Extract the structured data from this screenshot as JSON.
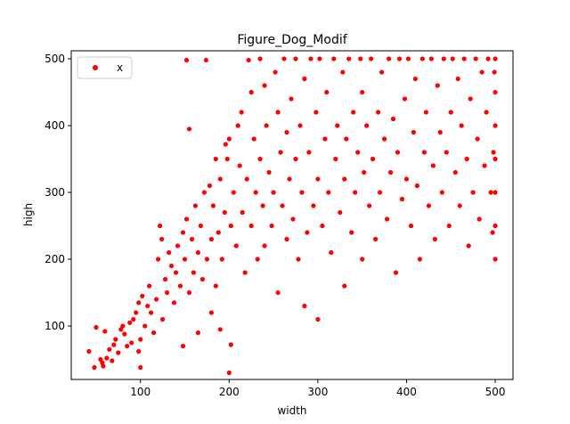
{
  "chart_data": {
    "type": "scatter",
    "title": "Figure_Dog_Modif",
    "xlabel": "width",
    "ylabel": "high",
    "xlim": [
      22,
      520
    ],
    "ylim": [
      20,
      512
    ],
    "xticks": [
      100,
      200,
      300,
      400,
      500
    ],
    "yticks": [
      100,
      200,
      300,
      400,
      500
    ],
    "grid": false,
    "legend": {
      "position": "top-left",
      "entries": [
        "x"
      ]
    },
    "marker_color": "#ff0000",
    "series": [
      {
        "name": "x",
        "points": [
          [
            42,
            62
          ],
          [
            48,
            38
          ],
          [
            50,
            98
          ],
          [
            55,
            50
          ],
          [
            57,
            45
          ],
          [
            58,
            40
          ],
          [
            60,
            92
          ],
          [
            62,
            52
          ],
          [
            65,
            65
          ],
          [
            68,
            48
          ],
          [
            70,
            72
          ],
          [
            72,
            80
          ],
          [
            75,
            60
          ],
          [
            78,
            95
          ],
          [
            80,
            100
          ],
          [
            82,
            88
          ],
          [
            85,
            70
          ],
          [
            88,
            105
          ],
          [
            90,
            75
          ],
          [
            92,
            110
          ],
          [
            95,
            120
          ],
          [
            98,
            135
          ],
          [
            98,
            62
          ],
          [
            100,
            80
          ],
          [
            100,
            38
          ],
          [
            102,
            145
          ],
          [
            105,
            100
          ],
          [
            108,
            130
          ],
          [
            110,
            160
          ],
          [
            112,
            120
          ],
          [
            115,
            90
          ],
          [
            118,
            140
          ],
          [
            120,
            200
          ],
          [
            122,
            250
          ],
          [
            124,
            230
          ],
          [
            125,
            110
          ],
          [
            128,
            170
          ],
          [
            130,
            150
          ],
          [
            132,
            210
          ],
          [
            135,
            190
          ],
          [
            138,
            135
          ],
          [
            140,
            180
          ],
          [
            142,
            220
          ],
          [
            145,
            160
          ],
          [
            148,
            240
          ],
          [
            148,
            70
          ],
          [
            150,
            200
          ],
          [
            152,
            260
          ],
          [
            152,
            498
          ],
          [
            155,
            150
          ],
          [
            155,
            395
          ],
          [
            158,
            230
          ],
          [
            160,
            180
          ],
          [
            162,
            280
          ],
          [
            165,
            210
          ],
          [
            165,
            90
          ],
          [
            168,
            250
          ],
          [
            170,
            170
          ],
          [
            172,
            300
          ],
          [
            174,
            498
          ],
          [
            175,
            200
          ],
          [
            178,
            310
          ],
          [
            180,
            230
          ],
          [
            180,
            120
          ],
          [
            182,
            280
          ],
          [
            185,
            160
          ],
          [
            185,
            350
          ],
          [
            188,
            240
          ],
          [
            190,
            320
          ],
          [
            190,
            95
          ],
          [
            192,
            200
          ],
          [
            195,
            270
          ],
          [
            196,
            372
          ],
          [
            198,
            350
          ],
          [
            200,
            380
          ],
          [
            200,
            30
          ],
          [
            202,
            250
          ],
          [
            202,
            72
          ],
          [
            205,
            300
          ],
          [
            208,
            220
          ],
          [
            210,
            400
          ],
          [
            212,
            340
          ],
          [
            214,
            420
          ],
          [
            215,
            270
          ],
          [
            218,
            180
          ],
          [
            220,
            320
          ],
          [
            222,
            498
          ],
          [
            225,
            250
          ],
          [
            225,
            450
          ],
          [
            228,
            380
          ],
          [
            230,
            300
          ],
          [
            232,
            200
          ],
          [
            235,
            500
          ],
          [
            235,
            350
          ],
          [
            238,
            280
          ],
          [
            240,
            460
          ],
          [
            240,
            220
          ],
          [
            242,
            400
          ],
          [
            245,
            330
          ],
          [
            248,
            250
          ],
          [
            250,
            300
          ],
          [
            252,
            480
          ],
          [
            255,
            420
          ],
          [
            255,
            150
          ],
          [
            258,
            360
          ],
          [
            260,
            280
          ],
          [
            262,
            500
          ],
          [
            265,
            230
          ],
          [
            265,
            390
          ],
          [
            268,
            320
          ],
          [
            270,
            440
          ],
          [
            272,
            260
          ],
          [
            275,
            500
          ],
          [
            275,
            350
          ],
          [
            278,
            200
          ],
          [
            280,
            400
          ],
          [
            282,
            300
          ],
          [
            285,
            470
          ],
          [
            285,
            130
          ],
          [
            288,
            240
          ],
          [
            290,
            360
          ],
          [
            292,
            500
          ],
          [
            295,
            280
          ],
          [
            298,
            420
          ],
          [
            300,
            320
          ],
          [
            300,
            110
          ],
          [
            302,
            500
          ],
          [
            305,
            250
          ],
          [
            308,
            380
          ],
          [
            310,
            450
          ],
          [
            312,
            300
          ],
          [
            315,
            210
          ],
          [
            318,
            500
          ],
          [
            320,
            350
          ],
          [
            322,
            400
          ],
          [
            325,
            270
          ],
          [
            328,
            480
          ],
          [
            330,
            320
          ],
          [
            330,
            160
          ],
          [
            332,
            380
          ],
          [
            335,
            500
          ],
          [
            338,
            240
          ],
          [
            340,
            420
          ],
          [
            342,
            300
          ],
          [
            345,
            360
          ],
          [
            348,
            500
          ],
          [
            350,
            200
          ],
          [
            350,
            450
          ],
          [
            352,
            330
          ],
          [
            355,
            400
          ],
          [
            358,
            280
          ],
          [
            360,
            500
          ],
          [
            362,
            350
          ],
          [
            365,
            230
          ],
          [
            368,
            420
          ],
          [
            370,
            300
          ],
          [
            372,
            480
          ],
          [
            375,
            380
          ],
          [
            378,
            260
          ],
          [
            380,
            500
          ],
          [
            382,
            330
          ],
          [
            385,
            410
          ],
          [
            388,
            180
          ],
          [
            390,
            360
          ],
          [
            392,
            500
          ],
          [
            395,
            290
          ],
          [
            398,
            440
          ],
          [
            400,
            320
          ],
          [
            402,
            500
          ],
          [
            405,
            250
          ],
          [
            408,
            390
          ],
          [
            410,
            470
          ],
          [
            412,
            310
          ],
          [
            415,
            200
          ],
          [
            418,
            500
          ],
          [
            420,
            360
          ],
          [
            422,
            420
          ],
          [
            425,
            280
          ],
          [
            428,
            500
          ],
          [
            430,
            340
          ],
          [
            432,
            230
          ],
          [
            435,
            460
          ],
          [
            438,
            390
          ],
          [
            440,
            300
          ],
          [
            442,
            500
          ],
          [
            445,
            360
          ],
          [
            448,
            250
          ],
          [
            450,
            420
          ],
          [
            452,
            500
          ],
          [
            455,
            330
          ],
          [
            458,
            470
          ],
          [
            460,
            280
          ],
          [
            462,
            400
          ],
          [
            465,
            500
          ],
          [
            468,
            350
          ],
          [
            470,
            220
          ],
          [
            472,
            440
          ],
          [
            475,
            300
          ],
          [
            478,
            500
          ],
          [
            480,
            380
          ],
          [
            482,
            260
          ],
          [
            485,
            480
          ],
          [
            488,
            340
          ],
          [
            490,
            420
          ],
          [
            492,
            500
          ],
          [
            495,
            300
          ],
          [
            497,
            240
          ],
          [
            498,
            360
          ],
          [
            499,
            480
          ],
          [
            500,
            500
          ],
          [
            500,
            200
          ],
          [
            500,
            300
          ],
          [
            500,
            400
          ],
          [
            500,
            450
          ],
          [
            500,
            350
          ],
          [
            500,
            250
          ]
        ]
      }
    ]
  }
}
